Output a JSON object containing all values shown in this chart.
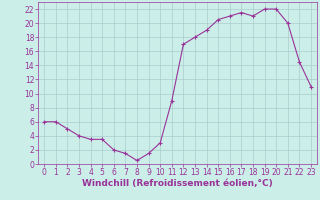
{
  "x": [
    0,
    1,
    2,
    3,
    4,
    5,
    6,
    7,
    8,
    9,
    10,
    11,
    12,
    13,
    14,
    15,
    16,
    17,
    18,
    19,
    20,
    21,
    22,
    23
  ],
  "y": [
    6,
    6,
    5,
    4,
    3.5,
    3.5,
    2,
    1.5,
    0.5,
    1.5,
    3,
    9,
    17,
    18,
    19,
    20.5,
    21,
    21.5,
    21,
    22,
    22,
    20,
    14.5,
    11
  ],
  "line_color": "#993399",
  "marker": "+",
  "marker_size": 3,
  "bg_color": "#cceee8",
  "grid_color": "#aacccc",
  "xlabel": "Windchill (Refroidissement éolien,°C)",
  "xlabel_color": "#993399",
  "xlim": [
    -0.5,
    23.5
  ],
  "ylim": [
    0,
    23
  ],
  "yticks": [
    0,
    2,
    4,
    6,
    8,
    10,
    12,
    14,
    16,
    18,
    20,
    22
  ],
  "xticks": [
    0,
    1,
    2,
    3,
    4,
    5,
    6,
    7,
    8,
    9,
    10,
    11,
    12,
    13,
    14,
    15,
    16,
    17,
    18,
    19,
    20,
    21,
    22,
    23
  ],
  "tick_color": "#993399",
  "axis_color": "#993399",
  "label_fontsize": 6.5,
  "tick_fontsize": 5.5
}
